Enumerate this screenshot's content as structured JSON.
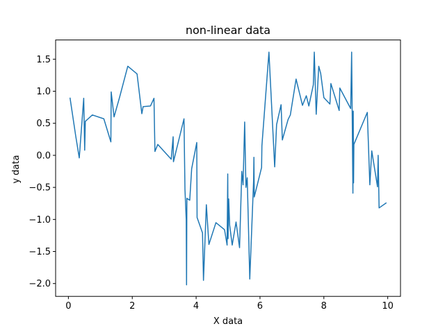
{
  "chart_data": {
    "type": "line",
    "title": "non-linear data",
    "xlabel": "X data",
    "ylabel": "y data",
    "xlim": [
      -0.4,
      10.4
    ],
    "ylim": [
      -2.2,
      1.8
    ],
    "xticks": [
      0,
      2,
      4,
      6,
      8,
      10
    ],
    "yticks": [
      -2.0,
      -1.5,
      -1.0,
      -0.5,
      0.0,
      0.5,
      1.0,
      1.5
    ],
    "xtick_labels": [
      "0",
      "2",
      "4",
      "6",
      "8",
      "10"
    ],
    "ytick_labels": [
      "−2.0",
      "−1.5",
      "−1.0",
      "−0.5",
      "0.0",
      "0.5",
      "1.0",
      "1.5"
    ],
    "grid": false,
    "series": [
      {
        "color": "#1f77b4",
        "x": [
          0.05,
          0.23,
          0.34,
          0.48,
          0.51,
          0.53,
          0.75,
          1.11,
          1.33,
          1.34,
          1.43,
          1.6,
          1.86,
          2.15,
          2.3,
          2.34,
          2.57,
          2.68,
          2.71,
          2.8,
          3.22,
          3.28,
          3.29,
          3.62,
          3.65,
          3.69,
          3.7,
          3.71,
          3.8,
          3.86,
          4.02,
          4.03,
          4.2,
          4.23,
          4.28,
          4.32,
          4.4,
          4.62,
          4.89,
          4.97,
          4.99,
          5.0,
          5.02,
          5.05,
          5.13,
          5.25,
          5.36,
          5.43,
          5.47,
          5.52,
          5.56,
          5.6,
          5.68,
          5.8,
          5.81,
          5.82,
          6.05,
          6.06,
          6.28,
          6.46,
          6.52,
          6.66,
          6.7,
          6.88,
          6.95,
          7.13,
          7.33,
          7.45,
          7.53,
          7.67,
          7.7,
          7.76,
          7.84,
          7.9,
          8.0,
          8.19,
          8.22,
          8.48,
          8.5,
          8.84,
          8.87,
          8.91,
          8.92,
          8.93,
          8.94,
          9.36,
          9.44,
          9.5,
          9.68,
          9.7,
          9.73,
          9.96
        ],
        "y": [
          0.9,
          0.3,
          -0.04,
          0.89,
          0.08,
          0.53,
          0.63,
          0.57,
          0.21,
          0.99,
          0.6,
          0.9,
          1.39,
          1.27,
          0.65,
          0.76,
          0.77,
          0.89,
          0.06,
          0.17,
          -0.06,
          0.29,
          -0.1,
          0.57,
          -0.53,
          -1.0,
          -2.02,
          -0.67,
          -0.7,
          -0.21,
          0.2,
          -0.97,
          -1.21,
          -1.95,
          -1.3,
          -0.77,
          -1.39,
          -1.05,
          -1.16,
          -1.4,
          -0.29,
          -1.3,
          -0.68,
          -1.09,
          -1.4,
          -1.04,
          -1.44,
          -0.25,
          -0.46,
          0.52,
          -0.5,
          -0.35,
          -1.93,
          -0.39,
          -0.03,
          -0.65,
          -0.19,
          0.15,
          1.61,
          -0.18,
          0.48,
          0.79,
          0.24,
          0.56,
          0.63,
          1.19,
          0.78,
          0.93,
          0.77,
          1.1,
          1.61,
          0.64,
          1.39,
          1.28,
          0.9,
          0.8,
          1.12,
          0.7,
          1.05,
          0.73,
          1.61,
          -0.59,
          0.69,
          -0.43,
          0.17,
          0.67,
          -0.46,
          0.07,
          -0.49,
          0.0,
          -0.82,
          -0.74
        ]
      }
    ]
  }
}
